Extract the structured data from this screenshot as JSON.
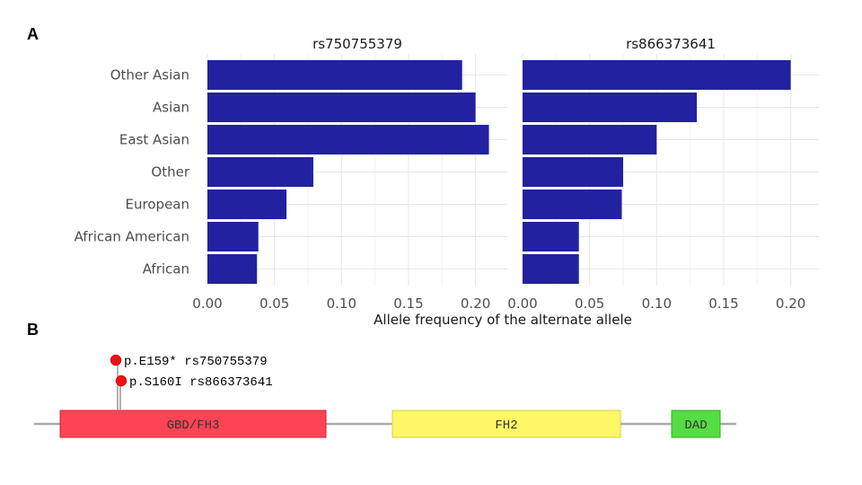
{
  "panel_a_label": "A",
  "panel_b_label": "B",
  "chart_data": [
    {
      "type": "bar",
      "orientation": "horizontal",
      "title": "rs750755379",
      "categories": [
        "Other Asian",
        "Asian",
        "East Asian",
        "Other",
        "European",
        "African American",
        "African"
      ],
      "values": [
        0.19,
        0.2,
        0.21,
        0.079,
        0.059,
        0.038,
        0.037
      ],
      "xlim": [
        0,
        0.22
      ],
      "xticks": [
        0.0,
        0.05,
        0.1,
        0.15,
        0.2
      ],
      "xtick_labels": [
        "0.00",
        "0.05",
        "0.10",
        "0.15",
        "0.20"
      ],
      "bar_color": "#2222a0",
      "grid": true
    },
    {
      "type": "bar",
      "orientation": "horizontal",
      "title": "rs866373641",
      "categories": [
        "Other Asian",
        "Asian",
        "East Asian",
        "Other",
        "European",
        "African American",
        "African"
      ],
      "values": [
        0.2,
        0.13,
        0.1,
        0.075,
        0.074,
        0.042,
        0.042
      ],
      "xlim": [
        0,
        0.22
      ],
      "xticks": [
        0.0,
        0.05,
        0.1,
        0.15,
        0.2
      ],
      "xtick_labels": [
        "0.00",
        "0.05",
        "0.10",
        "0.15",
        "0.20"
      ],
      "bar_color": "#2222a0",
      "grid": true
    }
  ],
  "xlabel": "Allele frequency of the alternate allele",
  "protein": {
    "domains": [
      {
        "name": "GBD/FH3",
        "color": "#ff4455"
      },
      {
        "name": "FH2",
        "color": "#fff766"
      },
      {
        "name": "DAD",
        "color": "#55dd44"
      }
    ],
    "mutations": [
      {
        "label": "p.E159* rs750755379",
        "color": "#ee1111"
      },
      {
        "label": "p.S160I rs866373641",
        "color": "#ee1111"
      }
    ]
  }
}
